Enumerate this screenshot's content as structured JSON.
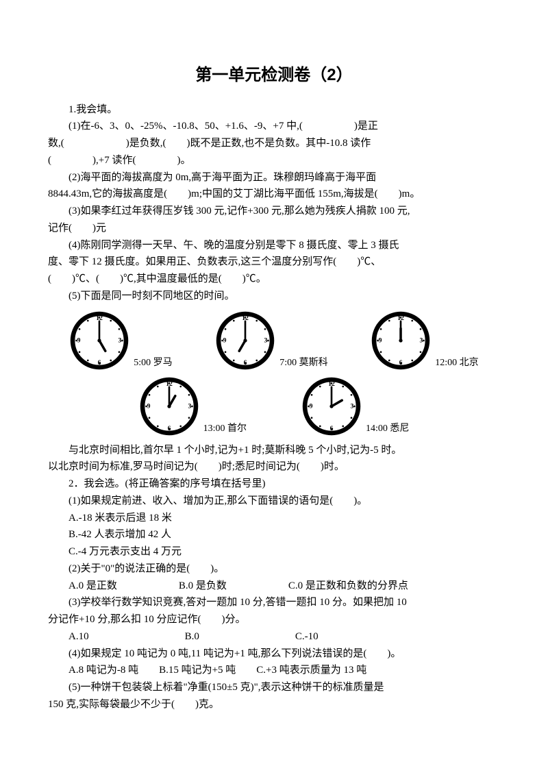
{
  "title": "第一单元检测卷（2）",
  "q1": {
    "header": "1.我会填。",
    "p1": "(1)在-6、3、0、-25%、-10.8、50、+1.6、-9、+7 中,(　　　　　)是正",
    "p1b": "数,(　　　　　　)是负数,(　　)既不是正数,也不是负数。其中-10.8 读作",
    "p1c": "(　　　　),+7 读作(　　　　)。",
    "p2": "(2)海平面的海拔高度为 0m,高于海平面为正。珠穆朗玛峰高于海平面",
    "p2b": "8844.43m,它的海拔高度是(　　)m;中国的艾丁湖比海平面低 155m,海拔是(　　)m。",
    "p3": "(3)如果李红过年获得压岁钱 300 元,记作+300 元,那么她为残疾人捐款 100 元,",
    "p3b": "记作(　　)元",
    "p4": "(4)陈刚同学测得一天早、午、晚的温度分别是零下 8 摄氏度、零上 3 摄氏",
    "p4b": "度、零下 12 摄氏度。如果用正、负数表示,这三个温度分别写作(　　)℃、",
    "p4c": "(　　)℃、(　　)℃,其中温度最低的是(　　)℃。",
    "p5": "(5)下面是同一时刻不同地区的时间。"
  },
  "clocks": {
    "row1": [
      {
        "label": "5:00 罗马",
        "hour": 5,
        "min": 0
      },
      {
        "label": "7:00 莫斯科",
        "hour": 7,
        "min": 0
      },
      {
        "label": "12:00 北京",
        "hour": 12,
        "min": 0
      }
    ],
    "row2": [
      {
        "label": "13:00 首尔",
        "hour": 13,
        "min": 0
      },
      {
        "label": "14:00 悉尼",
        "hour": 14,
        "min": 0
      }
    ]
  },
  "q1after": {
    "p6": "与北京时间相比,首尔早 1 个小时,记为+1 时;莫斯科晚 5 个小时,记为-5 时。",
    "p6b": "以北京时间为标准,罗马时间记为(　　)时;悉尼时间记为(　　)时。"
  },
  "q2": {
    "header": "2．我会选。(将正确答案的序号填在括号里)",
    "s1": "(1)如果规定前进、收入、增加为正,那么下面错误的语句是(　　)。",
    "s1a": "A.-18 米表示后退 18 米",
    "s1b": "B.-42 人表示增加 42 人",
    "s1c": "C.-4 万元表示支出 4 万元",
    "s2": "(2)关于\"0\"的说法正确的是(　　)。",
    "s2a": "A.0 是正数",
    "s2b": "B.0 是负数",
    "s2c": "C.0 是正数和负数的分界点",
    "s3": "(3)学校举行数学知识竞赛,答对一题加 10 分,答错一题扣 10 分。如果把加 10",
    "s3b": "分记作+10 分,那么扣 10 分应记作(　　)分。",
    "s3a1": "A.10",
    "s3a2": "B.0",
    "s3a3": "C.-10",
    "s4": "(4)如果规定 10 吨记为 0 吨,11 吨记为+1 吨,那么下列说法错误的是(　　)。",
    "s4a": "A.8 吨记为-8 吨　　B.15 吨记为+5 吨　　C.+3 吨表示质量为 13 吨",
    "s5": "(5)一种饼干包装袋上标着\"净重(150±5 克)\",表示这种饼干的标准质量是",
    "s5b": "150 克,实际每袋最少不少于(　　)克。"
  },
  "clockStyle": {
    "faceFill": "#ffffff",
    "faceStroke": "#000000",
    "faceStrokeWidth": 3,
    "outerRing": "#000000",
    "tickColor": "#000000",
    "numColor": "#000000",
    "handColor": "#000000"
  }
}
